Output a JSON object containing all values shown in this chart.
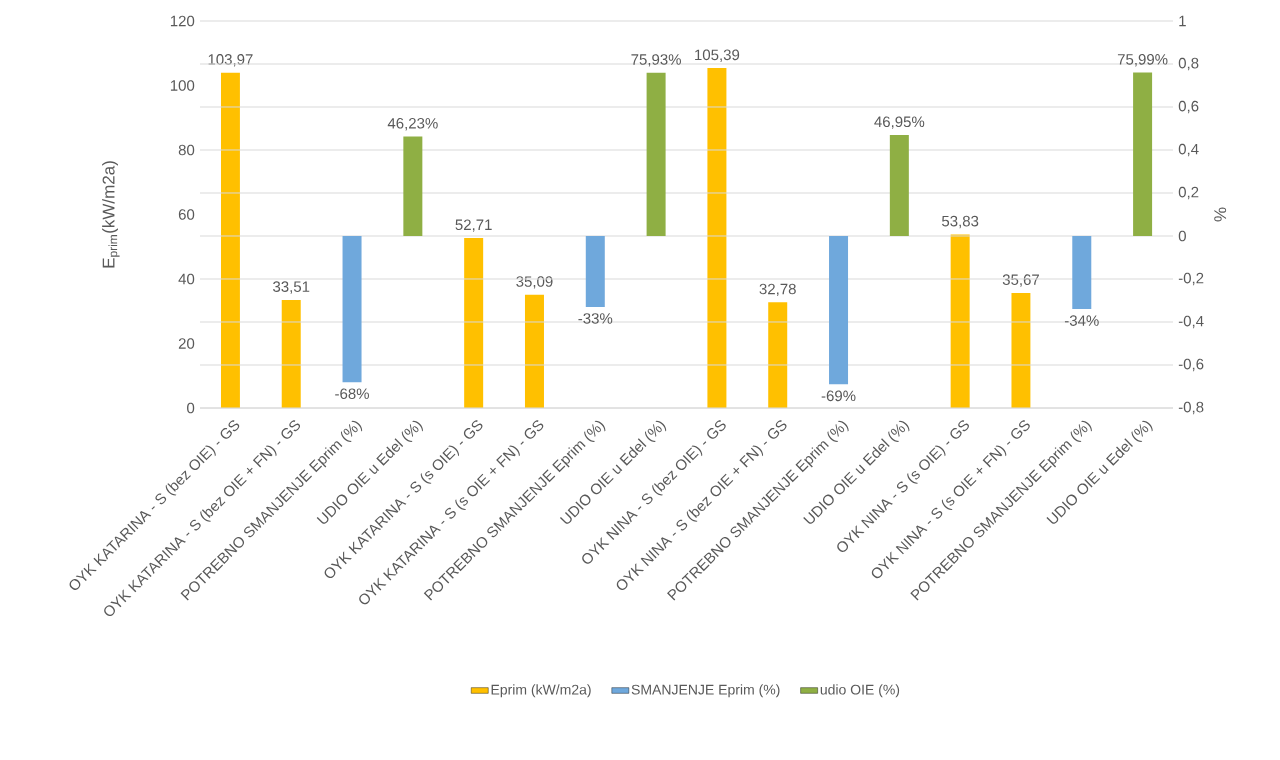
{
  "chart_data": {
    "type": "bar",
    "categories": [
      "OYK KATARINA - S (bez OIE) - GS",
      "OYK KATARINA - S (bez OIE + FN) - GS",
      "POTREBNO SMANJENJE Eprim (%)",
      "UDIO OIE u Edel (%)",
      "OYK KATARINA - S (s OIE) - GS",
      "OYK KATARINA - S (s OIE + FN) - GS",
      "POTREBNO SMANJENJE Eprim (%)",
      "UDIO OIE u Edel (%)",
      "OYK NINA - S (bez OIE) - GS",
      "OYK NINA - S (bez OIE + FN) - GS",
      "POTREBNO SMANJENJE Eprim (%)",
      "UDIO OIE u Edel (%)",
      "OYK NINA - S (s OIE) - GS",
      "OYK NINA - S (s OIE + FN) - GS",
      "POTREBNO SMANJENJE Eprim (%)",
      "UDIO OIE u Edel (%)"
    ],
    "series": [
      {
        "name": "Eprim (kW/m2a)",
        "color": "#ffc000",
        "values": [
          103.97,
          33.51,
          null,
          null,
          52.71,
          35.09,
          null,
          null,
          105.39,
          32.78,
          null,
          null,
          53.83,
          35.67,
          null,
          null
        ],
        "value_labels": [
          "103,97",
          "33,51",
          null,
          null,
          "52,71",
          "35,09",
          null,
          null,
          "105,39",
          "32,78",
          null,
          null,
          "53,83",
          "35,67",
          null,
          null
        ]
      },
      {
        "name": "SMANJENJE Eprim (%)",
        "color": "#6fa8dc",
        "axis": "y2",
        "values": [
          null,
          null,
          -0.68,
          null,
          null,
          null,
          -0.33,
          null,
          null,
          null,
          -0.69,
          null,
          null,
          null,
          -0.34,
          null
        ],
        "value_labels": [
          null,
          null,
          "-68%",
          null,
          null,
          null,
          "-33%",
          null,
          null,
          null,
          "-69%",
          null,
          null,
          null,
          "-34%",
          null
        ]
      },
      {
        "name": "udio OIE (%)",
        "color": "#8faf44",
        "axis": "y2",
        "values": [
          null,
          null,
          null,
          0.4623,
          null,
          null,
          null,
          0.7593,
          null,
          null,
          null,
          0.4695,
          null,
          null,
          null,
          0.7599
        ],
        "value_labels": [
          null,
          null,
          null,
          "46,23%",
          null,
          null,
          null,
          "75,93%",
          null,
          null,
          null,
          "46,95%",
          null,
          null,
          null,
          "75,99%"
        ]
      }
    ],
    "ylabel": "E$_{prim}$(kW/m2a)",
    "y2label": "%",
    "ylim": [
      0,
      120
    ],
    "yticks": [
      0,
      20,
      40,
      60,
      80,
      100,
      120
    ],
    "y2lim": [
      -0.8,
      1
    ],
    "y2ticks": [
      {
        "value": -0.8,
        "label": "-0,8"
      },
      {
        "value": -0.6,
        "label": "-0,6"
      },
      {
        "value": -0.4,
        "label": "-0,4"
      },
      {
        "value": -0.2,
        "label": "-0,2"
      },
      0,
      {
        "value": 0.2,
        "label": "0,2"
      },
      {
        "value": 0.4,
        "label": "0,4"
      },
      {
        "value": 0.6,
        "label": "0,6"
      },
      {
        "value": 0.8,
        "label": "0,8"
      },
      1
    ],
    "grid": true,
    "legend": "bottom"
  }
}
